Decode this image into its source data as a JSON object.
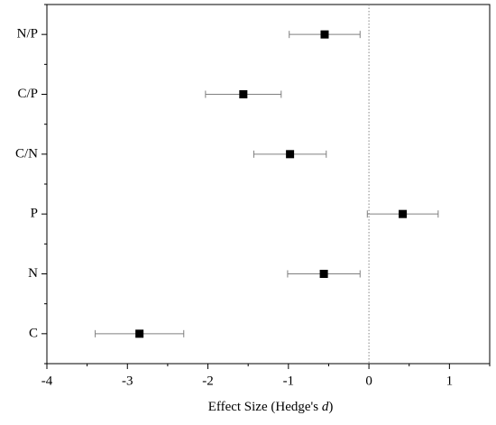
{
  "chart_data": {
    "type": "forest",
    "categories": [
      "N/P",
      "C/P",
      "C/N",
      "P",
      "N",
      "C"
    ],
    "values": [
      -0.55,
      -1.56,
      -0.98,
      0.42,
      -0.56,
      -2.85
    ],
    "errors": [
      0.44,
      0.47,
      0.45,
      0.44,
      0.45,
      0.55
    ],
    "color": "#000000",
    "error_color": "#808080",
    "xlim": [
      -4,
      1.5
    ],
    "xticks": [
      -4,
      -3,
      -2,
      -1,
      0,
      1
    ],
    "xminorticks": [
      -3.5,
      -2.5,
      -1.5,
      -0.5,
      0.5,
      1.5
    ],
    "xlabel": {
      "text": "Effect Size (Hedge's ",
      "italic": "d",
      "end": ")"
    },
    "refline": 0
  }
}
